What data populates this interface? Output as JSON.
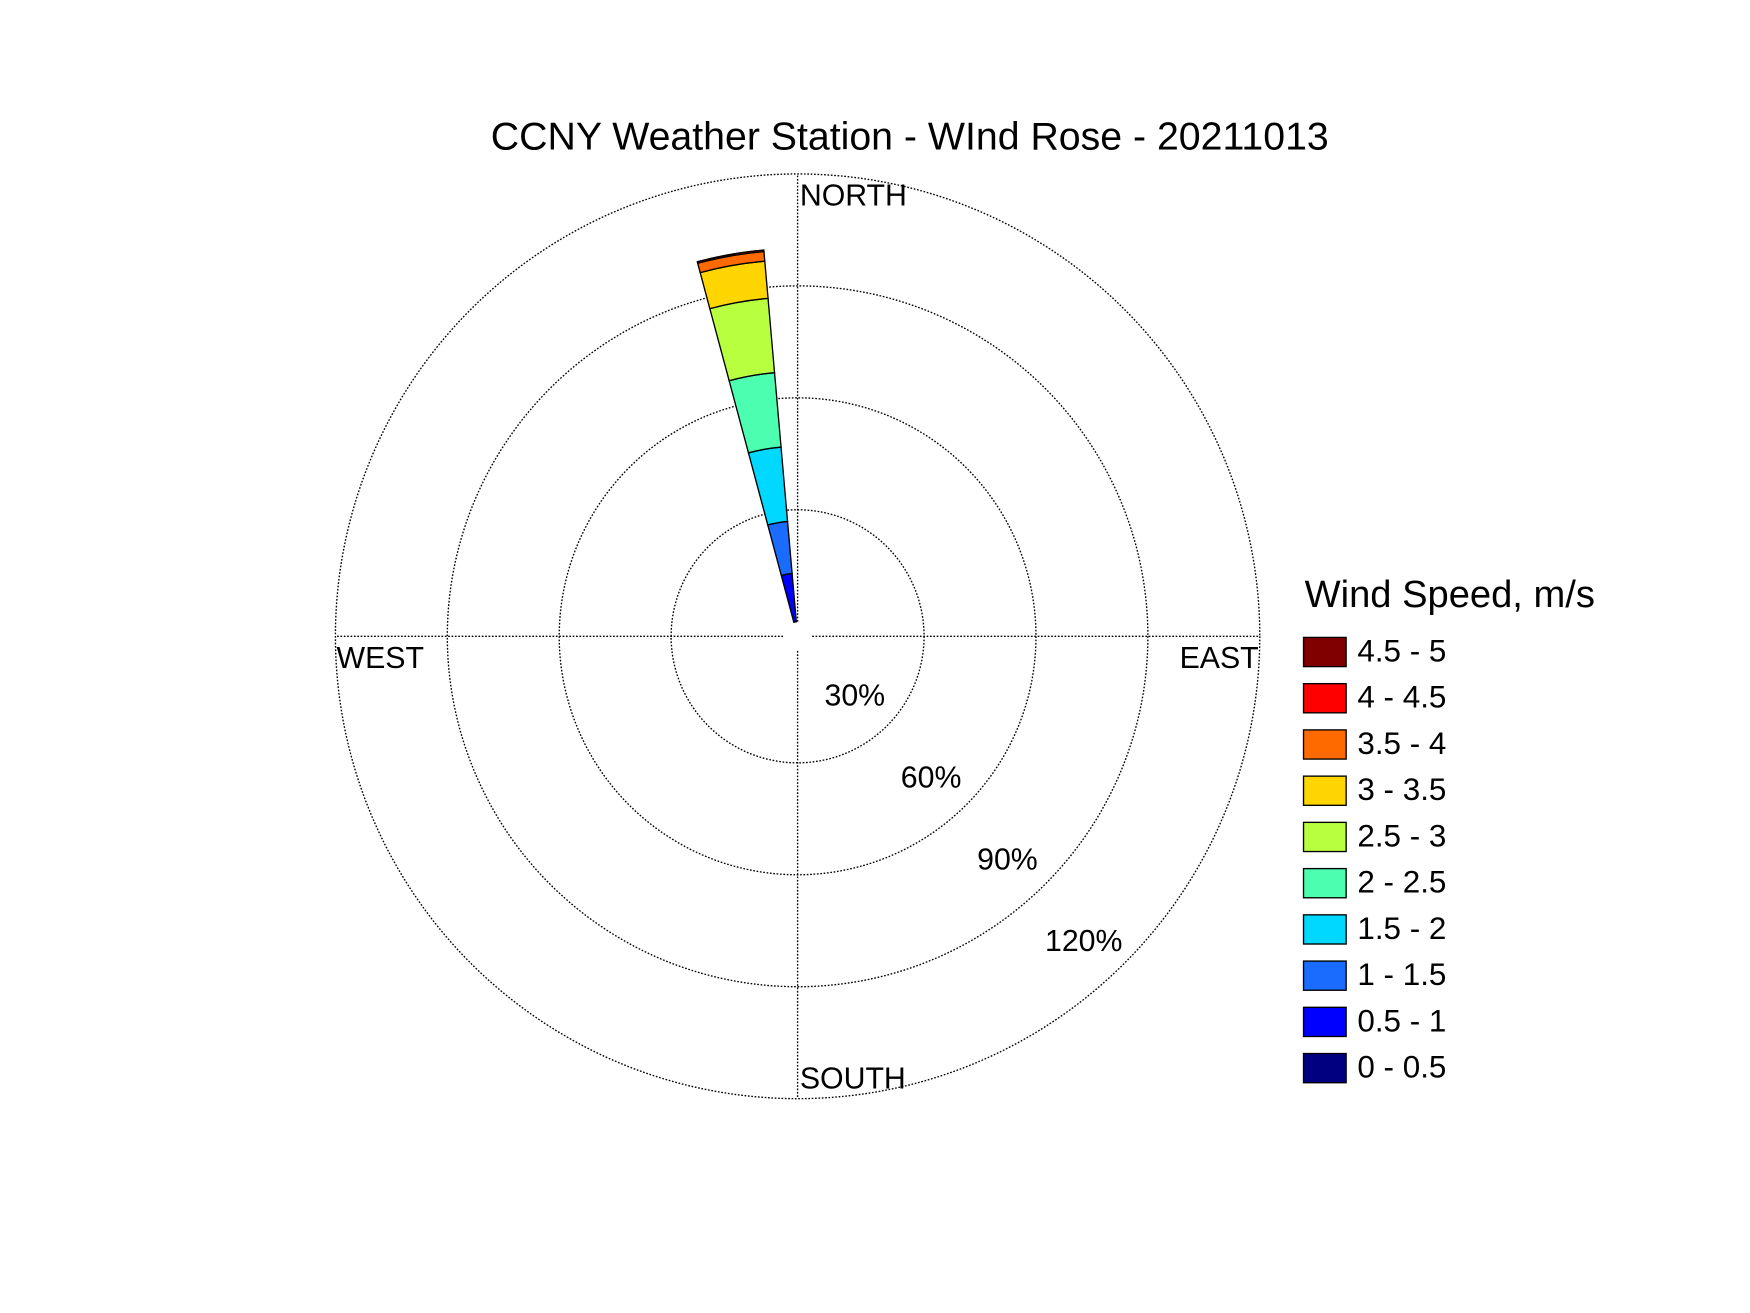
{
  "chart_data": {
    "type": "windrose",
    "title": "CCNY Weather Station - WInd Rose - 20211013",
    "direction_labels": [
      "NORTH",
      "EAST",
      "SOUTH",
      "WEST"
    ],
    "directions": [
      350
    ],
    "legend_title": "Wind Speed, m/s",
    "rlim": [
      0,
      120
    ],
    "rticks": [
      {
        "value": 30,
        "label": "30%"
      },
      {
        "value": 60,
        "label": "60%"
      },
      {
        "value": 90,
        "label": "90%"
      },
      {
        "value": 120,
        "label": "120%"
      }
    ],
    "series": [
      {
        "name": "0 - 0.5",
        "color": "#000080",
        "values": [
          0
        ]
      },
      {
        "name": "0.5 - 1",
        "color": "#0000ff",
        "values": [
          13
        ]
      },
      {
        "name": "1 - 1.5",
        "color": "#1a6cff",
        "values": [
          14
        ]
      },
      {
        "name": "1.5 - 2",
        "color": "#00d8ff",
        "values": [
          20
        ]
      },
      {
        "name": "2 - 2.5",
        "color": "#4cffb0",
        "values": [
          20
        ]
      },
      {
        "name": "2.5 - 3",
        "color": "#b8ff40",
        "values": [
          20
        ]
      },
      {
        "name": "3 - 3.5",
        "color": "#ffd500",
        "values": [
          10
        ]
      },
      {
        "name": "3.5 - 4",
        "color": "#ff6a00",
        "values": [
          2.6
        ]
      },
      {
        "name": "4 - 4.5",
        "color": "#ff0000",
        "values": [
          0.4
        ]
      },
      {
        "name": "4.5 - 5",
        "color": "#800000",
        "values": [
          0
        ]
      }
    ]
  }
}
